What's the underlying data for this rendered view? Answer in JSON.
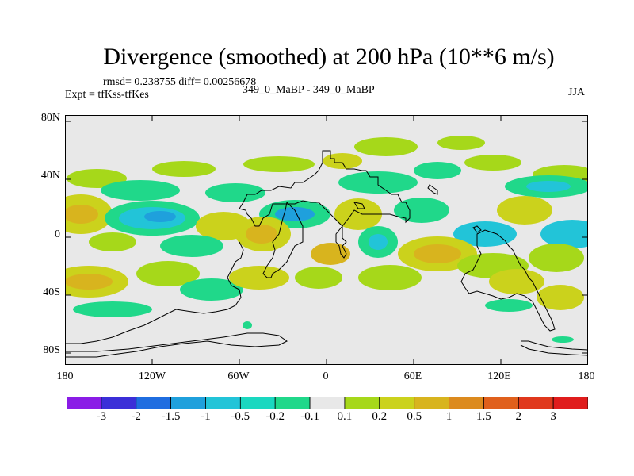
{
  "title": "Divergence (smoothed) at 200 hPa (10**6 m/s)",
  "stats_line": "rmsd= 0.238755  diff= 0.00256678",
  "expt_label": "Expt = tfKss-tfKes",
  "case_label": "349_0_MaBP - 349_0_MaBP",
  "season": "JJA",
  "axes": {
    "lat_ticks": [
      "80N",
      "40N",
      "0",
      "40S",
      "80S"
    ],
    "lon_ticks": [
      "180",
      "120W",
      "60W",
      "0",
      "60E",
      "120E",
      "180"
    ]
  },
  "colorbar": {
    "labels": [
      "-3",
      "-2",
      "-1.5",
      "-1",
      "-0.5",
      "-0.2",
      "-0.1",
      "0.1",
      "0.2",
      "0.5",
      "1",
      "1.5",
      "2",
      "3"
    ],
    "colors": [
      "#8a1ce6",
      "#3b2fd8",
      "#1f6de0",
      "#1fa0dc",
      "#22c4d8",
      "#1ad8c0",
      "#20d88a",
      "#e8e8e8",
      "#a6d81a",
      "#cbd21c",
      "#d8b41e",
      "#dc8a1e",
      "#e0601c",
      "#e0381c",
      "#e01c1c"
    ]
  },
  "map_fill": "#e8e8e8"
}
